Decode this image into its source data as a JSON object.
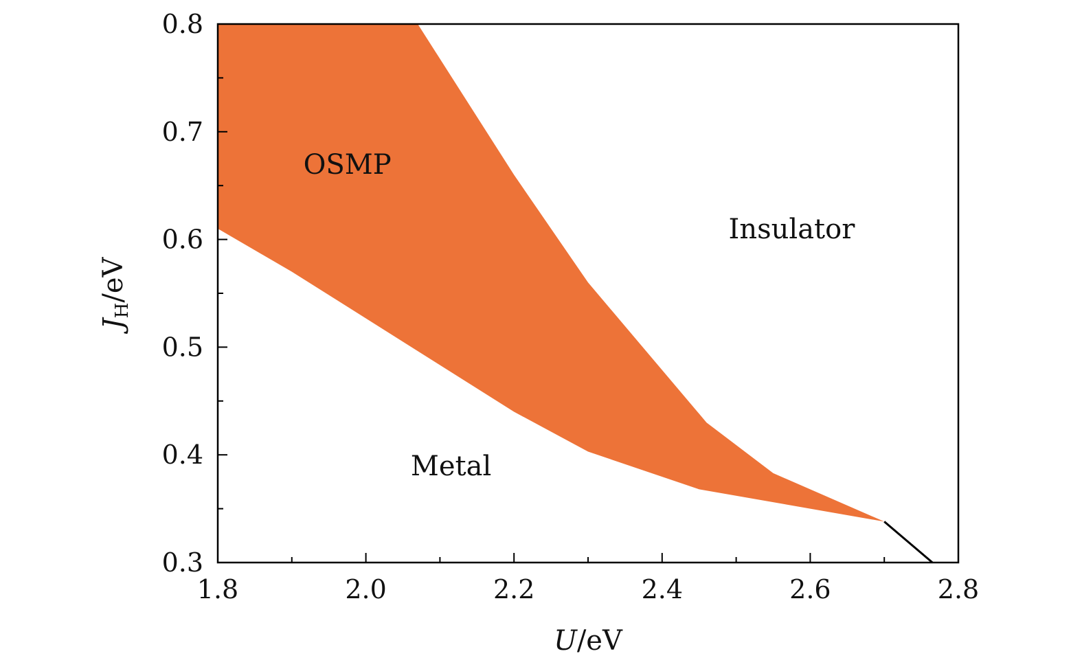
{
  "chart_data": {
    "type": "area",
    "title": "",
    "xlabel": "U/eV",
    "xlabel_var": "U",
    "xlabel_unit": "/eV",
    "ylabel": "J_H/eV",
    "ylabel_var": "J",
    "ylabel_sub": "H",
    "ylabel_unit": "/eV",
    "xlim": [
      1.8,
      2.8
    ],
    "ylim": [
      0.3,
      0.8
    ],
    "x_ticks": [
      "1.8",
      "2.0",
      "2.2",
      "2.4",
      "2.6",
      "2.8"
    ],
    "y_ticks": [
      "0.3",
      "0.4",
      "0.5",
      "0.6",
      "0.7",
      "0.8"
    ],
    "x_tick_values": [
      1.8,
      2.0,
      2.2,
      2.4,
      2.6,
      2.8
    ],
    "y_tick_values": [
      0.3,
      0.4,
      0.5,
      0.6,
      0.7,
      0.8
    ],
    "x_minor_ticks": [
      1.9,
      2.1,
      2.3,
      2.5,
      2.7
    ],
    "y_minor_ticks": [
      0.35,
      0.45,
      0.55,
      0.65,
      0.75
    ],
    "grid": false,
    "fill_color": "#ED7338",
    "line_color": "#000000",
    "series": [
      {
        "name": "OSMP",
        "region": "fill",
        "upper_boundary": {
          "x": [
            2.07,
            2.2,
            2.3,
            2.46,
            2.55,
            2.7
          ],
          "y": [
            0.8,
            0.66,
            0.56,
            0.43,
            0.383,
            0.338
          ]
        },
        "lower_boundary": {
          "x": [
            1.8,
            1.9,
            2.2,
            2.3,
            2.45,
            2.7
          ],
          "y": [
            0.61,
            0.57,
            0.44,
            0.403,
            0.368,
            0.338
          ]
        },
        "left_edge": {
          "x": [
            1.8,
            1.8
          ],
          "y": [
            0.61,
            0.8
          ]
        }
      },
      {
        "name": "Metal-Insulator boundary",
        "region": "line",
        "x": [
          2.7,
          2.765
        ],
        "y": [
          0.338,
          0.3
        ]
      }
    ],
    "annotations": [
      {
        "text": "OSMP",
        "x": 1.975,
        "y": 0.67
      },
      {
        "text": "Insulator",
        "x": 2.575,
        "y": 0.61
      },
      {
        "text": "Metal",
        "x": 2.115,
        "y": 0.39
      }
    ]
  }
}
